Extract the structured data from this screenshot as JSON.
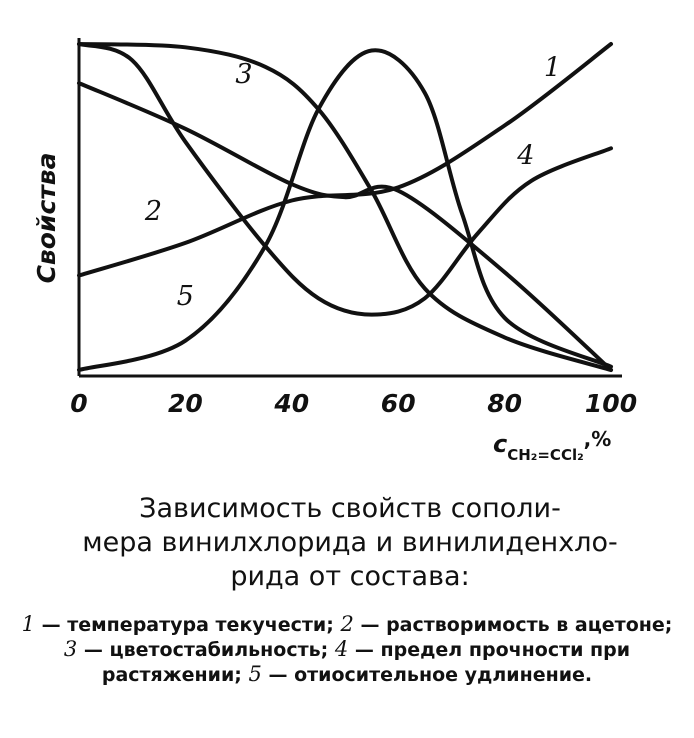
{
  "chart_data": {
    "type": "line",
    "ylabel": "Свойства",
    "xlabel": {
      "main": "c",
      "sub": "CH₂=CCl₂",
      "unit": ",%"
    },
    "xlim": [
      0,
      100
    ],
    "ylim": [
      0,
      1
    ],
    "x_ticks": [
      "0",
      "20",
      "40",
      "60",
      "80",
      "100"
    ],
    "grid": false,
    "series": [
      {
        "name": "1",
        "points": [
          [
            0,
            0.29
          ],
          [
            20,
            0.39
          ],
          [
            40,
            0.52
          ],
          [
            60,
            0.56
          ],
          [
            80,
            0.75
          ],
          [
            100,
            1.0
          ]
        ]
      },
      {
        "name": "2",
        "points": [
          [
            0,
            0.88
          ],
          [
            20,
            0.74
          ],
          [
            40,
            0.57
          ],
          [
            50,
            0.53
          ],
          [
            60,
            0.55
          ],
          [
            80,
            0.3
          ],
          [
            100,
            0.0
          ]
        ]
      },
      {
        "name": "3",
        "points": [
          [
            0,
            1.0
          ],
          [
            20,
            0.99
          ],
          [
            35,
            0.93
          ],
          [
            45,
            0.8
          ],
          [
            55,
            0.55
          ],
          [
            65,
            0.25
          ],
          [
            80,
            0.1
          ],
          [
            100,
            0.0
          ]
        ]
      },
      {
        "name": "4",
        "points": [
          [
            0,
            1.0
          ],
          [
            10,
            0.95
          ],
          [
            20,
            0.7
          ],
          [
            35,
            0.38
          ],
          [
            45,
            0.22
          ],
          [
            55,
            0.17
          ],
          [
            65,
            0.22
          ],
          [
            75,
            0.42
          ],
          [
            85,
            0.58
          ],
          [
            100,
            0.68
          ]
        ]
      },
      {
        "name": "5",
        "points": [
          [
            0,
            0.0
          ],
          [
            20,
            0.09
          ],
          [
            35,
            0.38
          ],
          [
            45,
            0.8
          ],
          [
            55,
            0.98
          ],
          [
            65,
            0.85
          ],
          [
            72,
            0.48
          ],
          [
            80,
            0.16
          ],
          [
            100,
            0.01
          ]
        ]
      }
    ],
    "curve_labels": [
      "1",
      "2",
      "3",
      "4",
      "5"
    ]
  },
  "caption": {
    "lines": [
      "Зависимость свойств сополи-",
      "мера винилхлорида и винилиденхло-",
      "рида от состава:"
    ]
  },
  "legend": [
    {
      "num": "1",
      "text": " — температура текучести; "
    },
    {
      "num": "2",
      "text": " — растворимость в ацетоне; "
    },
    {
      "num": "3",
      "text": " — цветостабильность; "
    },
    {
      "num": "4",
      "text": " — предел прочности при растяжении; "
    },
    {
      "num": "5",
      "text": " — отиосительное удлинение."
    }
  ]
}
